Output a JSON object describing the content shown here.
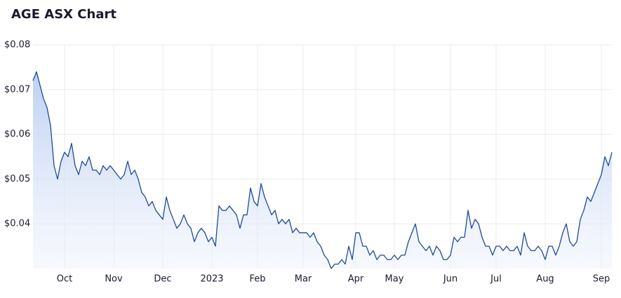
{
  "chart_data": {
    "type": "area",
    "title": "AGE ASX Chart",
    "categories": [
      null,
      null,
      null,
      null,
      null,
      null,
      null,
      null,
      null,
      "Oct",
      null,
      null,
      null,
      null,
      null,
      null,
      null,
      null,
      null,
      null,
      null,
      null,
      null,
      "Nov",
      null,
      null,
      null,
      null,
      null,
      null,
      null,
      null,
      null,
      null,
      null,
      null,
      null,
      "Dec",
      null,
      null,
      null,
      null,
      null,
      null,
      null,
      null,
      null,
      null,
      null,
      null,
      null,
      "2023",
      null,
      null,
      null,
      null,
      null,
      null,
      null,
      null,
      null,
      null,
      null,
      null,
      "Feb",
      null,
      null,
      null,
      null,
      null,
      null,
      null,
      null,
      null,
      null,
      null,
      null,
      "Mar",
      null,
      null,
      null,
      null,
      null,
      null,
      null,
      null,
      null,
      null,
      null,
      null,
      null,
      null,
      "Apr",
      null,
      null,
      null,
      null,
      null,
      null,
      null,
      null,
      null,
      null,
      "May",
      null,
      null,
      null,
      null,
      null,
      null,
      null,
      null,
      null,
      null,
      null,
      null,
      null,
      null,
      null,
      "Jun",
      null,
      null,
      null,
      null,
      null,
      null,
      null,
      null,
      null,
      null,
      null,
      null,
      "Jul",
      null,
      null,
      null,
      null,
      null,
      null,
      null,
      null,
      null,
      null,
      null,
      null,
      null,
      "Aug",
      null,
      null,
      null,
      null,
      null,
      null,
      null,
      null,
      null,
      null,
      null,
      null,
      null,
      null,
      null,
      "Sep",
      null,
      null,
      null
    ],
    "values": [
      0.072,
      0.074,
      0.071,
      0.068,
      0.066,
      0.062,
      0.053,
      0.05,
      0.054,
      0.056,
      0.055,
      0.058,
      0.053,
      0.051,
      0.054,
      0.053,
      0.055,
      0.052,
      0.052,
      0.051,
      0.053,
      0.052,
      0.053,
      0.052,
      0.051,
      0.05,
      0.051,
      0.054,
      0.051,
      0.052,
      0.05,
      0.047,
      0.046,
      0.044,
      0.045,
      0.043,
      0.042,
      0.041,
      0.046,
      0.043,
      0.041,
      0.039,
      0.04,
      0.042,
      0.04,
      0.039,
      0.036,
      0.038,
      0.039,
      0.038,
      0.036,
      0.037,
      0.035,
      0.044,
      0.043,
      0.043,
      0.044,
      0.043,
      0.042,
      0.039,
      0.042,
      0.042,
      0.048,
      0.045,
      0.044,
      0.049,
      0.046,
      0.044,
      0.042,
      0.043,
      0.04,
      0.041,
      0.04,
      0.041,
      0.038,
      0.039,
      0.038,
      0.038,
      0.038,
      0.037,
      0.038,
      0.036,
      0.035,
      0.033,
      0.032,
      0.03,
      0.031,
      0.031,
      0.032,
      0.031,
      0.035,
      0.032,
      0.038,
      0.038,
      0.035,
      0.035,
      0.033,
      0.034,
      0.032,
      0.033,
      0.033,
      0.032,
      0.032,
      0.033,
      0.032,
      0.033,
      0.033,
      0.036,
      0.038,
      0.04,
      0.036,
      0.035,
      0.034,
      0.035,
      0.033,
      0.035,
      0.034,
      0.032,
      0.032,
      0.033,
      0.037,
      0.036,
      0.037,
      0.037,
      0.043,
      0.039,
      0.041,
      0.04,
      0.037,
      0.035,
      0.035,
      0.033,
      0.035,
      0.035,
      0.034,
      0.035,
      0.034,
      0.034,
      0.035,
      0.033,
      0.038,
      0.035,
      0.034,
      0.034,
      0.035,
      0.034,
      0.032,
      0.035,
      0.035,
      0.033,
      0.035,
      0.038,
      0.04,
      0.036,
      0.035,
      0.036,
      0.041,
      0.043,
      0.046,
      0.045,
      0.047,
      0.049,
      0.051,
      0.055,
      0.053,
      0.056
    ],
    "color": "#1d4a9b",
    "ylim": [
      0.03,
      0.08
    ],
    "yticks": [
      {
        "value": 0.04,
        "label": "$0.04"
      },
      {
        "value": 0.05,
        "label": "$0.05"
      },
      {
        "value": 0.06,
        "label": "$0.06"
      },
      {
        "value": 0.07,
        "label": "$0.07"
      },
      {
        "value": 0.08,
        "label": "$0.08"
      }
    ],
    "grid": true
  }
}
